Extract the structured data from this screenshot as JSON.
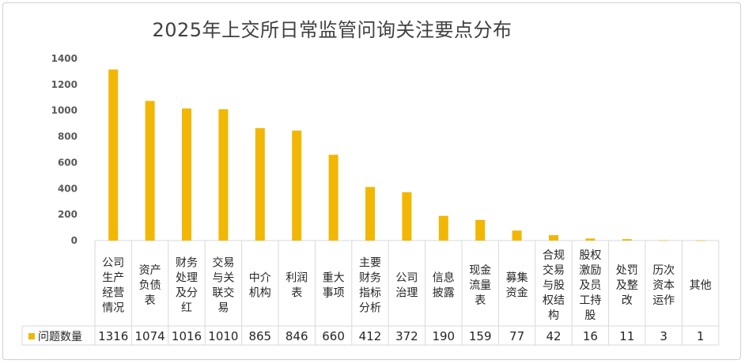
{
  "chart_data": {
    "type": "bar",
    "title": "2025年上交所日常监管问询关注要点分布",
    "categories": [
      [
        "公司",
        "生产",
        "经营",
        "情况"
      ],
      [
        "资产",
        "负债",
        "表"
      ],
      [
        "财务",
        "处理",
        "及分",
        "红"
      ],
      [
        "交易",
        "与关",
        "联交",
        "易"
      ],
      [
        "中介",
        "机构"
      ],
      [
        "利润",
        "表"
      ],
      [
        "重大",
        "事项"
      ],
      [
        "主要",
        "财务",
        "指标",
        "分析"
      ],
      [
        "公司",
        "治理"
      ],
      [
        "信息",
        "披露"
      ],
      [
        "现金",
        "流量",
        "表"
      ],
      [
        "募集",
        "资金"
      ],
      [
        "合规",
        "交易",
        "与股",
        "权结",
        "构"
      ],
      [
        "股权",
        "激励",
        "及员",
        "工持",
        "股"
      ],
      [
        "处罚",
        "及整",
        "改"
      ],
      [
        "历次",
        "资本",
        "运作"
      ],
      [
        "其他"
      ]
    ],
    "series": [
      {
        "name": "问题数量",
        "values": [
          1316,
          1074,
          1016,
          1010,
          865,
          846,
          660,
          412,
          372,
          190,
          159,
          77,
          42,
          16,
          11,
          3,
          1
        ],
        "color": "#F2B705"
      }
    ],
    "ylim": [
      0,
      1400
    ],
    "yticks": [
      0,
      200,
      400,
      600,
      800,
      1000,
      1200,
      1400
    ],
    "grid": false,
    "legend": "data-table-left"
  }
}
